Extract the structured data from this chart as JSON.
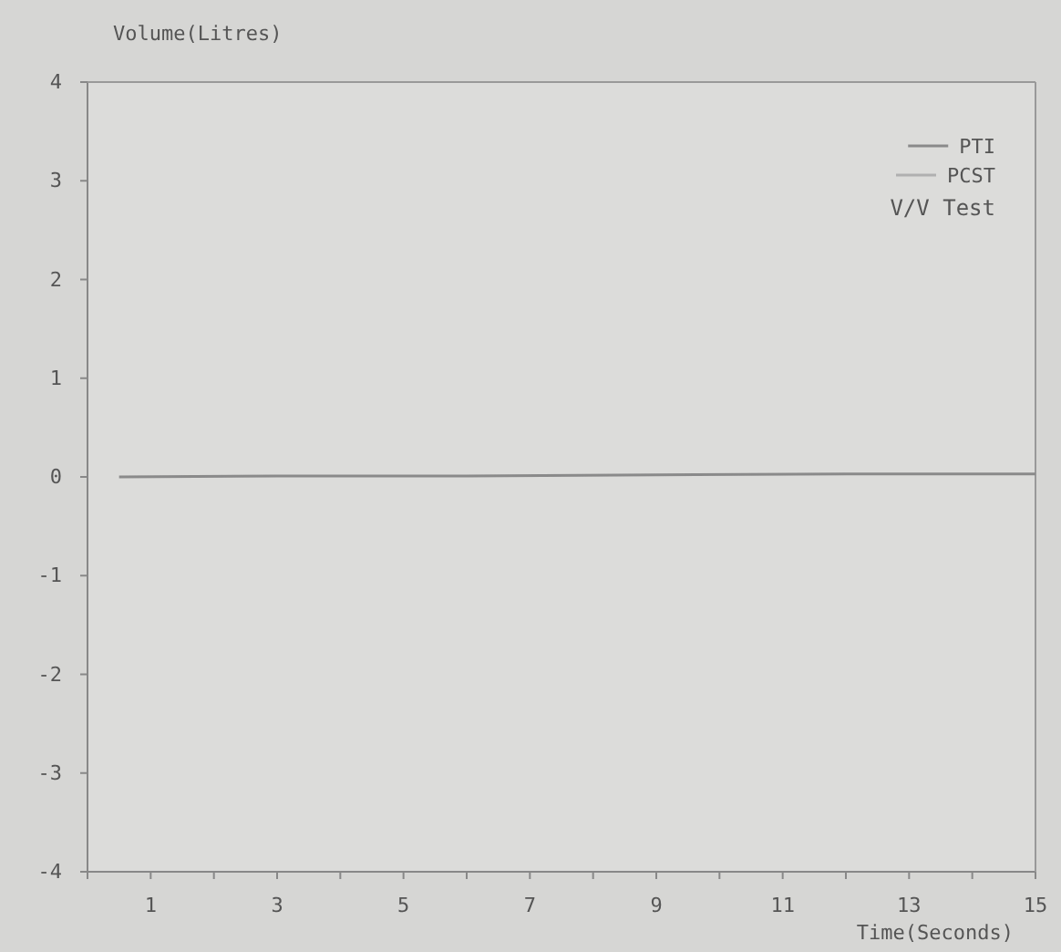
{
  "chart_data": {
    "type": "line",
    "title": "V/V Test",
    "xlabel": "Time(Seconds)",
    "ylabel": "Volume(Litres)",
    "x": [
      0.5,
      3,
      6,
      9,
      12,
      15
    ],
    "series": [
      {
        "name": "PTI",
        "color": "#8a8a8a",
        "values": [
          0,
          0.01,
          0.01,
          0.02,
          0.03,
          0.03
        ]
      },
      {
        "name": "PCST",
        "color": "#b0b0b0",
        "values": [
          null,
          null,
          null,
          null,
          null,
          null
        ]
      }
    ],
    "xlim": [
      0,
      15
    ],
    "xticks": [
      {
        "value": 0,
        "label": null
      },
      1,
      {
        "value": 2,
        "label": null
      },
      3,
      {
        "value": 4,
        "label": null
      },
      5,
      {
        "value": 6,
        "label": null
      },
      7,
      {
        "value": 8,
        "label": null
      },
      9,
      {
        "value": 10,
        "label": null
      },
      11,
      {
        "value": 12,
        "label": null
      },
      13,
      {
        "value": 14,
        "label": null
      },
      15
    ],
    "ylim": [
      -4,
      4
    ],
    "yticks": [
      -4,
      -3,
      -2,
      -1,
      0,
      1,
      2,
      3,
      4
    ],
    "legend": "top right",
    "marker": "none",
    "line_style": "solid",
    "grid": false
  }
}
